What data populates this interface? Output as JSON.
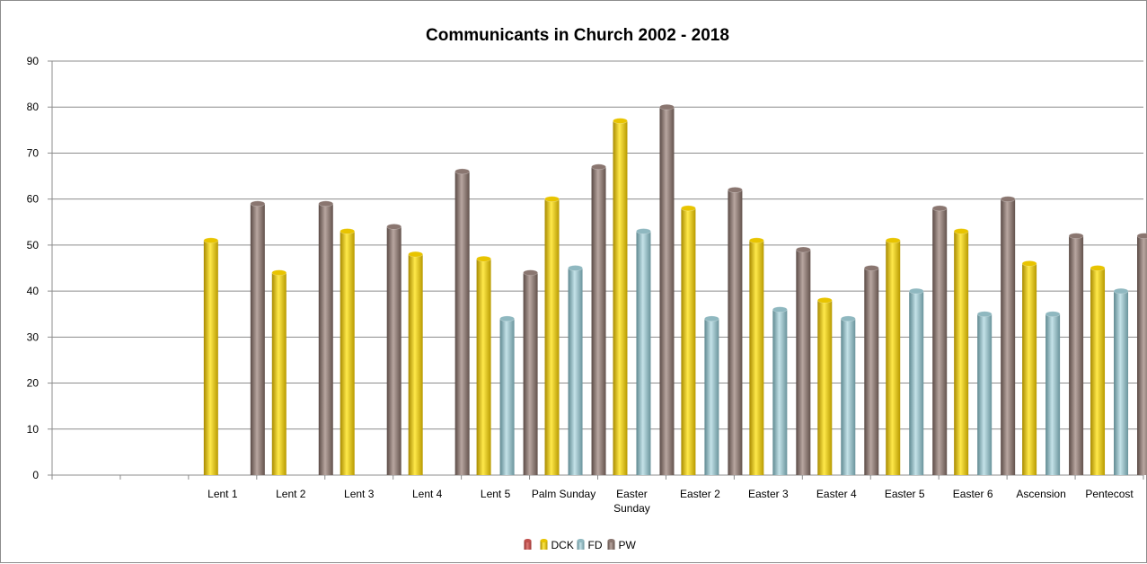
{
  "chart_data": {
    "type": "bar",
    "title": "Communicants in Church 2002 - 2018",
    "xlabel": "",
    "ylabel": "",
    "ylim": [
      0,
      90
    ],
    "yticks": [
      0,
      10,
      20,
      30,
      40,
      50,
      60,
      70,
      80,
      90
    ],
    "grid": true,
    "legend_position": "bottom",
    "categories": [
      "",
      "",
      "Lent 1",
      "Lent 2",
      "Lent 3",
      "Lent 4",
      "Lent 5",
      "Palm Sunday",
      "Easter Sunday",
      "Easter 2",
      "Easter 3",
      "Easter 4",
      "Easter 5",
      "Easter 6",
      "Ascension",
      "Pentecost"
    ],
    "category_lines": [
      [
        ""
      ],
      [
        ""
      ],
      [
        "Lent 1"
      ],
      [
        "Lent 2"
      ],
      [
        "Lent 3"
      ],
      [
        "Lent 4"
      ],
      [
        "Lent 5"
      ],
      [
        "Palm Sunday"
      ],
      [
        "Easter",
        "Sunday"
      ],
      [
        "Easter 2"
      ],
      [
        "Easter 3"
      ],
      [
        "Easter 4"
      ],
      [
        "Easter 5"
      ],
      [
        "Easter 6"
      ],
      [
        "Ascension"
      ],
      [
        "Pentecost"
      ]
    ],
    "series": [
      {
        "name": "",
        "color": "#c0504d",
        "values": [
          null,
          null,
          null,
          null,
          null,
          null,
          null,
          null,
          null,
          null,
          null,
          null,
          null,
          null,
          null,
          null
        ]
      },
      {
        "name": "DCK",
        "color": "#e8c400",
        "values": [
          null,
          null,
          51,
          44,
          53,
          48,
          47,
          60,
          77,
          58,
          51,
          38,
          51,
          53,
          46,
          45
        ]
      },
      {
        "name": "FD",
        "color": "#8fb8c0",
        "values": [
          null,
          null,
          null,
          null,
          null,
          null,
          34,
          45,
          53,
          34,
          36,
          34,
          40,
          35,
          35,
          40
        ]
      },
      {
        "name": "PW",
        "color": "#8a7670",
        "values": [
          null,
          null,
          59,
          59,
          54,
          66,
          44,
          67,
          80,
          62,
          49,
          45,
          58,
          60,
          52,
          52
        ]
      }
    ]
  }
}
